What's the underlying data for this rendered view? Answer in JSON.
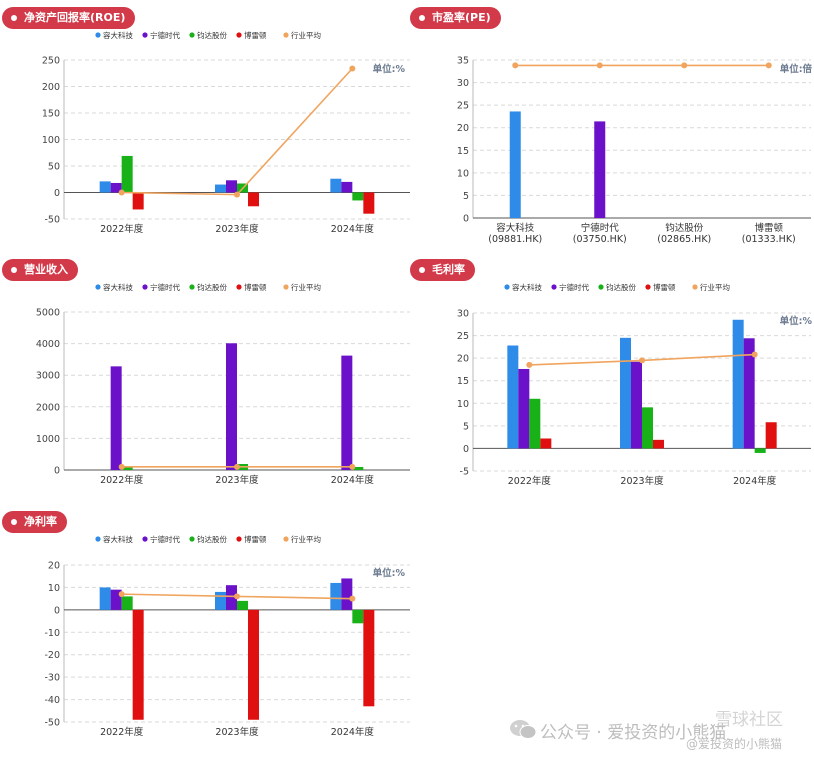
{
  "legend_items": [
    "容大科技",
    "宁德时代",
    "钧达股份",
    "博雷顿",
    "行业平均"
  ],
  "colors": {
    "blue": "#2f8be8",
    "purple": "#6a11c9",
    "green": "#18b218",
    "red": "#e01010",
    "avg": "#f0a45e",
    "badge": "#d23a4a",
    "grid": "#d9d9d9",
    "axis": "#555555"
  },
  "panels": [
    {
      "title": "净资产回报率(ROE)",
      "unit": "单位:%",
      "chart_data": {
        "type": "bar",
        "categories": [
          "2022年度",
          "2023年度",
          "2024年度"
        ],
        "series": [
          {
            "name": "容大科技",
            "values": [
              21,
              15,
              26
            ]
          },
          {
            "name": "宁德时代",
            "values": [
              18,
              23,
              20
            ]
          },
          {
            "name": "钧达股份",
            "values": [
              69,
              17,
              -15
            ]
          },
          {
            "name": "博雷顿",
            "values": [
              -32,
              -26,
              -40
            ]
          }
        ],
        "line": {
          "name": "行业平均",
          "values": [
            0,
            -4,
            234
          ]
        },
        "ylim": [
          -50,
          250
        ],
        "ticks": [
          -50,
          0,
          50,
          100,
          150,
          200,
          250
        ],
        "grid": true,
        "legend": "top"
      }
    },
    {
      "title": "市盈率(PE)",
      "unit": "单位:倍",
      "chart_data": {
        "type": "bar",
        "categories": [
          "容大科技\n(09881.HK)",
          "宁德时代\n(03750.HK)",
          "钧达股份\n(02865.HK)",
          "博雷顿\n(01333.HK)"
        ],
        "series": [
          {
            "name": "市盈率",
            "values": [
              23.6,
              21.4,
              0,
              0
            ],
            "colors": [
              "blue",
              "purple",
              "green",
              "red"
            ]
          }
        ],
        "line": {
          "name": "行业平均",
          "values": [
            33.8,
            33.8,
            33.8,
            33.8
          ]
        },
        "ylim": [
          0,
          35
        ],
        "ticks": [
          0,
          5,
          10,
          15,
          20,
          25,
          30,
          35
        ],
        "grid": true,
        "legend": "none"
      }
    },
    {
      "title": "营业收入",
      "unit": "",
      "chart_data": {
        "type": "bar",
        "categories": [
          "2022年度",
          "2023年度",
          "2024年度"
        ],
        "series": [
          {
            "name": "容大科技",
            "values": [
              0,
              0,
              0
            ]
          },
          {
            "name": "宁德时代",
            "values": [
              3280,
              4010,
              3620
            ]
          },
          {
            "name": "钧达股份",
            "values": [
              100,
              190,
              95
            ]
          },
          {
            "name": "博雷顿",
            "values": [
              0,
              0,
              0
            ]
          }
        ],
        "line": {
          "name": "行业平均",
          "values": [
            100,
            100,
            100
          ]
        },
        "ylim": [
          0,
          5000
        ],
        "ticks": [
          0,
          1000,
          2000,
          3000,
          4000,
          5000
        ],
        "grid": true,
        "legend": "top"
      }
    },
    {
      "title": "毛利率",
      "unit": "单位:%",
      "chart_data": {
        "type": "bar",
        "categories": [
          "2022年度",
          "2023年度",
          "2024年度"
        ],
        "series": [
          {
            "name": "容大科技",
            "values": [
              22.8,
              24.5,
              28.5
            ]
          },
          {
            "name": "宁德时代",
            "values": [
              17.6,
              19.2,
              24.4
            ]
          },
          {
            "name": "钧达股份",
            "values": [
              11.0,
              9.1,
              -1.0
            ]
          },
          {
            "name": "博雷顿",
            "values": [
              2.2,
              1.9,
              5.8
            ]
          }
        ],
        "line": {
          "name": "行业平均",
          "values": [
            18.5,
            19.5,
            20.8
          ]
        },
        "ylim": [
          -5,
          30
        ],
        "ticks": [
          -5,
          0,
          5,
          10,
          15,
          20,
          25,
          30
        ],
        "grid": true,
        "legend": "top"
      }
    },
    {
      "title": "净利率",
      "unit": "单位:%",
      "chart_data": {
        "type": "bar",
        "categories": [
          "2022年度",
          "2023年度",
          "2024年度"
        ],
        "series": [
          {
            "name": "容大科技",
            "values": [
              10,
              8,
              12
            ]
          },
          {
            "name": "宁德时代",
            "values": [
              9,
              11,
              14
            ]
          },
          {
            "name": "钧达股份",
            "values": [
              6,
              4,
              -6
            ]
          },
          {
            "name": "博雷顿",
            "values": [
              -49,
              -49,
              -43
            ]
          }
        ],
        "line": {
          "name": "行业平均",
          "values": [
            7,
            6,
            5
          ]
        },
        "ylim": [
          -50,
          20
        ],
        "ticks": [
          -50,
          -40,
          -30,
          -20,
          -10,
          0,
          10,
          20
        ],
        "grid": true,
        "legend": "top"
      }
    }
  ],
  "watermark": {
    "main": "公众号 · 爱投资的小熊猫",
    "community": "雪球社区",
    "sub": "@爱投资的小熊猫"
  }
}
